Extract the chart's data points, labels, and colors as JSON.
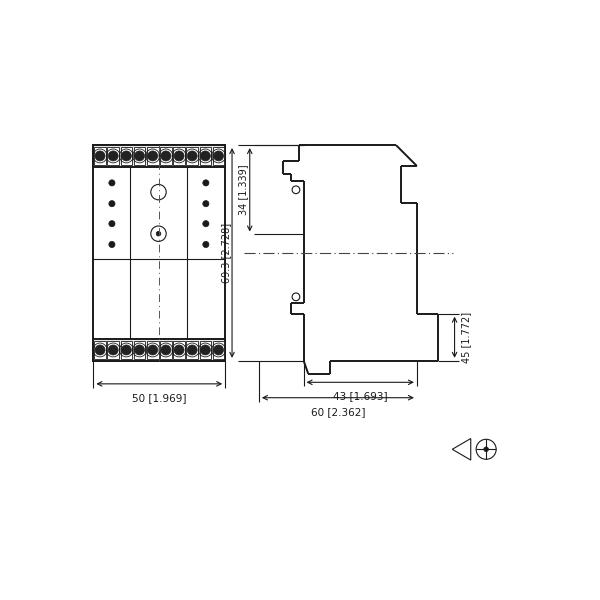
{
  "bg_color": "#ffffff",
  "line_color": "#1a1a1a",
  "lw": 1.4,
  "thin_lw": 0.8,
  "dim_lw": 0.8,
  "dim_labels": {
    "width_50": "50 [1.969]",
    "height_69": "69.3 [2.728]",
    "height_34": "34 [1.339]",
    "depth_43": "43 [1.693]",
    "depth_60": "60 [2.362]",
    "height_45": "45 [1.772]"
  }
}
